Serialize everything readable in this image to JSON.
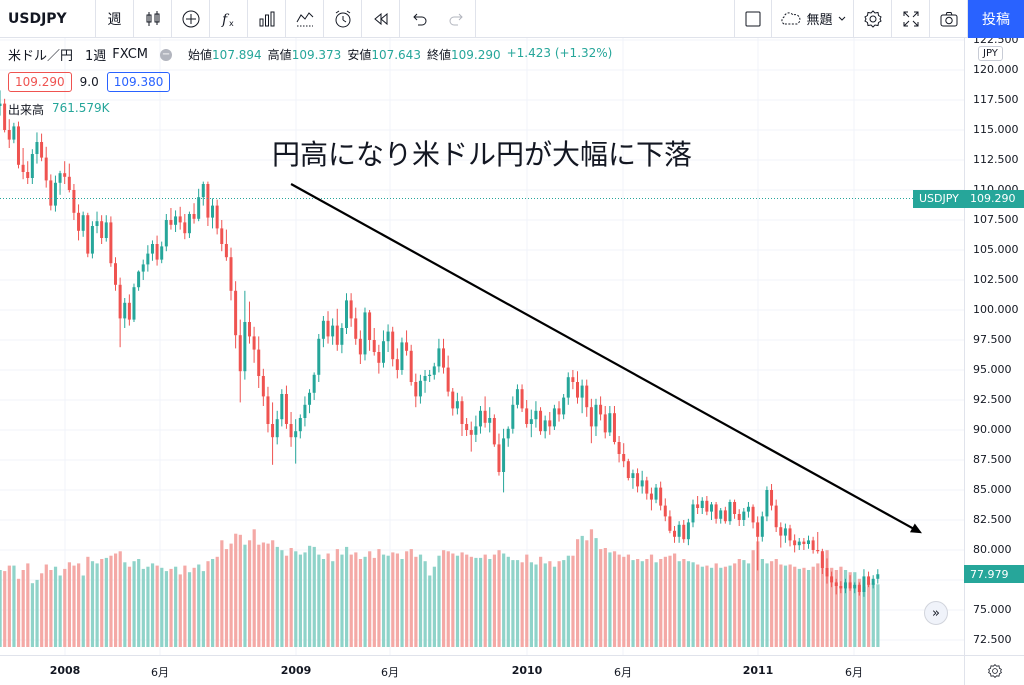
{
  "toolbar": {
    "symbol": "USDJPY",
    "interval": "週",
    "layout_name": "無題",
    "post_label": "投稿",
    "icons": [
      "candles-icon",
      "add-compare-icon",
      "indicators-icon",
      "financials-icon",
      "templates-icon",
      "alert-icon",
      "replay-icon",
      "undo-icon",
      "redo-icon",
      "layout-icon",
      "cloud-icon",
      "chevron-down-icon",
      "settings-icon",
      "fullscreen-icon",
      "camera-icon"
    ]
  },
  "legend": {
    "name": "米ドル／円",
    "interval": "1週",
    "exchange": "FXCM",
    "ohlc": [
      {
        "k": "始値",
        "v": "107.894"
      },
      {
        "k": "高値",
        "v": "109.373"
      },
      {
        "k": "安値",
        "v": "107.643"
      },
      {
        "k": "終値",
        "v": "109.290"
      },
      {
        "k": "",
        "v": "+1.423 (+1.32%)"
      }
    ],
    "bid": "109.290",
    "spread": "9.0",
    "ask": "109.380",
    "volume_label": "出来高",
    "volume_value": "761.579K"
  },
  "annotation_text": "円高になり米ドル円が大幅に下落",
  "price_axis": {
    "currency": "JPY",
    "ticks": [
      "122.500",
      "120.000",
      "117.500",
      "115.000",
      "112.500",
      "110.000",
      "107.500",
      "105.000",
      "102.500",
      "100.000",
      "97.500",
      "95.000",
      "92.500",
      "90.000",
      "87.500",
      "85.000",
      "82.500",
      "80.000",
      "77.500",
      "75.000",
      "72.500"
    ],
    "symbol_tag": "USDJPY",
    "current_price": "109.290",
    "volume_tag": "77.979"
  },
  "time_axis": {
    "labels": [
      {
        "text": "2008",
        "year": true
      },
      {
        "text": "6月",
        "year": false
      },
      {
        "text": "2009",
        "year": true
      },
      {
        "text": "6月",
        "year": false
      },
      {
        "text": "2010",
        "year": true
      },
      {
        "text": "6月",
        "year": false
      },
      {
        "text": "2011",
        "year": true
      },
      {
        "text": "6月",
        "year": false
      }
    ]
  },
  "colors": {
    "up": "#26a69a",
    "down": "#ef5350",
    "vol_up": "#8fd3c9",
    "vol_down": "#f4a9a6",
    "accent": "#2962ff"
  },
  "chart_data": {
    "type": "candlestick",
    "symbol": "USDJPY",
    "ylim": [
      72.5,
      122.5
    ],
    "x_range": [
      "2007-11",
      "2011-09"
    ],
    "trendline": {
      "from": [
        63,
        110.5
      ],
      "to": [
        232,
        81.4
      ]
    },
    "candles": [
      [
        117.0,
        118.3,
        116.2,
        117.2,
        0.7
      ],
      [
        117.2,
        117.6,
        114.8,
        115.0,
        0.69
      ],
      [
        115.0,
        115.9,
        113.5,
        114.2,
        0.74
      ],
      [
        114.2,
        115.6,
        113.9,
        115.3,
        0.74
      ],
      [
        115.3,
        115.7,
        111.8,
        112.1,
        0.62
      ],
      [
        112.1,
        113.5,
        110.9,
        111.5,
        0.7
      ],
      [
        111.5,
        112.4,
        110.5,
        111.0,
        0.76
      ],
      [
        111.0,
        113.4,
        110.5,
        113.0,
        0.58
      ],
      [
        113.0,
        114.8,
        112.2,
        114.0,
        0.61
      ],
      [
        114.0,
        114.7,
        112.4,
        112.7,
        0.67
      ],
      [
        112.7,
        113.6,
        110.2,
        110.8,
        0.75
      ],
      [
        110.8,
        111.3,
        108.3,
        108.7,
        0.7
      ],
      [
        108.7,
        111.2,
        108.2,
        110.6,
        0.73
      ],
      [
        110.6,
        111.6,
        109.6,
        111.4,
        0.65
      ],
      [
        111.4,
        112.4,
        110.5,
        111.1,
        0.71
      ],
      [
        111.1,
        112.2,
        109.8,
        110.0,
        0.77
      ],
      [
        110.0,
        110.5,
        107.5,
        108.1,
        0.74
      ],
      [
        108.1,
        108.8,
        105.8,
        106.6,
        0.76
      ],
      [
        106.6,
        108.2,
        106.1,
        107.9,
        0.65
      ],
      [
        107.9,
        108.1,
        104.4,
        104.7,
        0.82
      ],
      [
        104.7,
        107.4,
        104.3,
        107.0,
        0.78
      ],
      [
        107.0,
        108.2,
        106.4,
        107.4,
        0.76
      ],
      [
        107.4,
        107.9,
        105.5,
        106.0,
        0.8
      ],
      [
        106.0,
        107.9,
        105.7,
        107.3,
        0.81
      ],
      [
        107.3,
        107.8,
        103.6,
        103.9,
        0.83
      ],
      [
        103.9,
        104.4,
        101.6,
        102.1,
        0.85
      ],
      [
        102.1,
        102.7,
        96.9,
        99.3,
        0.87
      ],
      [
        99.3,
        101.0,
        98.5,
        100.6,
        0.77
      ],
      [
        100.6,
        101.3,
        98.7,
        99.2,
        0.73
      ],
      [
        99.2,
        102.2,
        99.0,
        101.9,
        0.78
      ],
      [
        101.9,
        103.3,
        101.6,
        103.2,
        0.8
      ],
      [
        103.2,
        104.2,
        102.5,
        103.8,
        0.71
      ],
      [
        103.8,
        105.4,
        103.2,
        104.7,
        0.73
      ],
      [
        104.7,
        105.8,
        104.1,
        105.5,
        0.76
      ],
      [
        105.5,
        106.2,
        103.7,
        104.2,
        0.74
      ],
      [
        104.2,
        105.7,
        103.9,
        105.3,
        0.72
      ],
      [
        105.3,
        108.0,
        104.9,
        107.5,
        0.69
      ],
      [
        107.5,
        108.5,
        106.7,
        107.1,
        0.71
      ],
      [
        107.1,
        108.3,
        106.5,
        107.8,
        0.73
      ],
      [
        107.8,
        108.6,
        106.7,
        107.3,
        0.66
      ],
      [
        107.3,
        108.0,
        105.9,
        106.4,
        0.74
      ],
      [
        106.4,
        108.2,
        106.0,
        108.0,
        0.68
      ],
      [
        108.0,
        108.9,
        107.2,
        107.6,
        0.72
      ],
      [
        107.6,
        110.1,
        107.4,
        109.4,
        0.75
      ],
      [
        109.4,
        110.7,
        108.7,
        110.5,
        0.69
      ],
      [
        110.5,
        110.7,
        107.0,
        107.7,
        0.78
      ],
      [
        107.7,
        109.3,
        106.8,
        108.7,
        0.8
      ],
      [
        108.7,
        109.2,
        106.3,
        106.8,
        0.82
      ],
      [
        106.8,
        107.5,
        104.9,
        105.5,
        0.97
      ],
      [
        105.5,
        106.7,
        104.1,
        104.4,
        0.89
      ],
      [
        104.4,
        105.2,
        100.8,
        101.6,
        0.94
      ],
      [
        101.6,
        102.4,
        96.8,
        97.9,
        1.03
      ],
      [
        97.9,
        99.2,
        92.3,
        94.9,
        1.02
      ],
      [
        94.9,
        101.6,
        94.2,
        99.0,
        0.93
      ],
      [
        99.0,
        100.7,
        97.2,
        97.8,
        0.97
      ],
      [
        97.8,
        98.6,
        95.6,
        96.7,
        1.07
      ],
      [
        96.7,
        97.8,
        93.5,
        94.5,
        0.93
      ],
      [
        94.5,
        95.1,
        92.0,
        92.8,
        0.95
      ],
      [
        92.8,
        93.6,
        89.8,
        90.5,
        0.94
      ],
      [
        90.5,
        92.3,
        87.1,
        89.4,
        0.97
      ],
      [
        89.4,
        91.6,
        88.8,
        90.9,
        0.91
      ],
      [
        90.9,
        93.4,
        90.3,
        93.0,
        0.88
      ],
      [
        93.0,
        93.7,
        90.1,
        90.5,
        0.83
      ],
      [
        90.5,
        91.5,
        88.6,
        89.4,
        0.9
      ],
      [
        89.4,
        90.9,
        87.2,
        89.9,
        0.87
      ],
      [
        89.9,
        91.3,
        89.3,
        91.0,
        0.84
      ],
      [
        91.0,
        92.8,
        90.3,
        92.1,
        0.86
      ],
      [
        92.1,
        93.4,
        91.4,
        93.1,
        0.92
      ],
      [
        93.1,
        94.8,
        92.5,
        94.6,
        0.91
      ],
      [
        94.6,
        98.0,
        94.0,
        97.6,
        0.84
      ],
      [
        97.6,
        99.5,
        96.9,
        99.1,
        0.8
      ],
      [
        99.1,
        99.9,
        97.2,
        97.8,
        0.85
      ],
      [
        97.8,
        99.3,
        97.1,
        98.7,
        0.78
      ],
      [
        98.7,
        100.1,
        96.6,
        97.1,
        0.89
      ],
      [
        97.1,
        98.9,
        96.4,
        98.5,
        0.84
      ],
      [
        98.5,
        101.4,
        98.0,
        100.8,
        0.91
      ],
      [
        100.8,
        101.4,
        98.6,
        99.3,
        0.84
      ],
      [
        99.3,
        100.2,
        97.1,
        97.6,
        0.86
      ],
      [
        97.6,
        98.3,
        95.5,
        96.3,
        0.8
      ],
      [
        96.3,
        100.2,
        95.8,
        99.8,
        0.82
      ],
      [
        99.8,
        100.0,
        96.6,
        97.5,
        0.87
      ],
      [
        97.5,
        98.5,
        96.2,
        96.5,
        0.81
      ],
      [
        96.5,
        97.1,
        94.7,
        95.6,
        0.89
      ],
      [
        95.6,
        98.3,
        95.2,
        97.4,
        0.84
      ],
      [
        97.4,
        98.8,
        96.5,
        98.2,
        0.83
      ],
      [
        98.2,
        98.6,
        95.3,
        95.9,
        0.86
      ],
      [
        95.9,
        96.8,
        94.3,
        95.0,
        0.85
      ],
      [
        95.0,
        97.7,
        94.6,
        97.3,
        0.8
      ],
      [
        97.3,
        98.3,
        96.2,
        96.6,
        0.87
      ],
      [
        96.6,
        97.1,
        93.7,
        94.0,
        0.89
      ],
      [
        94.0,
        94.7,
        91.9,
        92.8,
        0.82
      ],
      [
        92.8,
        94.6,
        92.2,
        94.1,
        0.84
      ],
      [
        94.1,
        95.0,
        93.1,
        94.5,
        0.78
      ],
      [
        94.5,
        95.0,
        94.0,
        94.6,
        0.65
      ],
      [
        94.6,
        95.6,
        94.2,
        95.3,
        0.73
      ],
      [
        95.3,
        97.6,
        94.8,
        96.8,
        0.83
      ],
      [
        96.8,
        97.6,
        94.7,
        95.2,
        0.88
      ],
      [
        95.2,
        96.2,
        92.8,
        93.2,
        0.87
      ],
      [
        93.2,
        93.5,
        91.2,
        91.8,
        0.85
      ],
      [
        91.8,
        93.1,
        91.3,
        92.4,
        0.83
      ],
      [
        92.4,
        92.8,
        89.5,
        90.5,
        0.86
      ],
      [
        90.5,
        91.0,
        89.5,
        90.0,
        0.84
      ],
      [
        90.0,
        90.7,
        88.2,
        89.6,
        0.82
      ],
      [
        89.6,
        91.2,
        89.0,
        90.3,
        0.81
      ],
      [
        90.3,
        92.0,
        89.7,
        91.6,
        0.81
      ],
      [
        91.6,
        92.8,
        90.2,
        90.6,
        0.84
      ],
      [
        90.6,
        91.9,
        89.8,
        91.0,
        0.8
      ],
      [
        91.0,
        91.3,
        88.6,
        88.8,
        0.84
      ],
      [
        88.8,
        89.7,
        86.2,
        86.5,
        0.88
      ],
      [
        86.5,
        90.1,
        84.8,
        89.3,
        0.85
      ],
      [
        89.3,
        90.3,
        88.6,
        90.1,
        0.82
      ],
      [
        90.1,
        92.8,
        89.7,
        92.1,
        0.79
      ],
      [
        92.1,
        93.8,
        91.8,
        93.4,
        0.79
      ],
      [
        93.4,
        93.8,
        91.5,
        91.8,
        0.77
      ],
      [
        91.8,
        92.5,
        90.2,
        90.5,
        0.84
      ],
      [
        90.5,
        91.7,
        89.4,
        90.9,
        0.77
      ],
      [
        90.9,
        92.4,
        90.2,
        91.6,
        0.75
      ],
      [
        91.6,
        91.9,
        89.6,
        89.9,
        0.82
      ],
      [
        89.9,
        91.2,
        89.3,
        90.8,
        0.76
      ],
      [
        90.8,
        91.5,
        89.6,
        90.3,
        0.78
      ],
      [
        90.3,
        92.1,
        90.0,
        91.8,
        0.73
      ],
      [
        91.8,
        92.4,
        90.7,
        91.3,
        0.78
      ],
      [
        91.3,
        93.0,
        90.9,
        92.7,
        0.79
      ],
      [
        92.7,
        94.8,
        92.1,
        94.4,
        0.83
      ],
      [
        94.4,
        95.0,
        93.4,
        94.0,
        0.83
      ],
      [
        94.0,
        94.9,
        92.2,
        92.7,
        0.98
      ],
      [
        92.7,
        94.2,
        91.4,
        93.7,
        1.01
      ],
      [
        93.7,
        94.2,
        91.1,
        91.9,
        0.97
      ],
      [
        91.9,
        92.6,
        88.9,
        90.3,
        1.07
      ],
      [
        90.3,
        92.6,
        89.5,
        92.1,
        0.99
      ],
      [
        92.1,
        92.8,
        90.8,
        91.3,
        0.89
      ],
      [
        91.3,
        92.0,
        89.3,
        89.8,
        0.9
      ],
      [
        89.8,
        92.0,
        89.5,
        91.4,
        0.86
      ],
      [
        91.4,
        92.0,
        88.8,
        89.0,
        0.87
      ],
      [
        89.0,
        89.5,
        87.3,
        88.0,
        0.84
      ],
      [
        88.0,
        88.9,
        86.9,
        87.4,
        0.82
      ],
      [
        87.4,
        87.6,
        85.8,
        86.0,
        0.84
      ],
      [
        86.0,
        86.7,
        85.1,
        86.4,
        0.79
      ],
      [
        86.4,
        86.8,
        84.8,
        85.3,
        0.8
      ],
      [
        85.3,
        86.6,
        84.7,
        85.8,
        0.78
      ],
      [
        85.8,
        86.1,
        84.2,
        84.7,
        0.8
      ],
      [
        84.7,
        85.2,
        83.3,
        84.2,
        0.84
      ],
      [
        84.2,
        85.5,
        83.9,
        85.2,
        0.77
      ],
      [
        85.2,
        85.7,
        83.3,
        83.7,
        0.8
      ],
      [
        83.7,
        84.3,
        82.4,
        82.8,
        0.82
      ],
      [
        82.8,
        83.3,
        81.4,
        81.6,
        0.83
      ],
      [
        81.6,
        82.0,
        80.6,
        81.1,
        0.85
      ],
      [
        81.1,
        82.4,
        80.6,
        82.1,
        0.78
      ],
      [
        82.1,
        82.5,
        80.6,
        80.9,
        0.8
      ],
      [
        80.9,
        82.6,
        80.4,
        82.3,
        0.78
      ],
      [
        82.3,
        84.2,
        81.9,
        83.8,
        0.77
      ],
      [
        83.8,
        84.5,
        83.0,
        83.5,
        0.75
      ],
      [
        83.5,
        84.4,
        83.0,
        84.1,
        0.73
      ],
      [
        84.1,
        84.5,
        82.9,
        83.2,
        0.74
      ],
      [
        83.2,
        84.0,
        82.5,
        83.8,
        0.72
      ],
      [
        83.8,
        84.0,
        82.2,
        82.6,
        0.76
      ],
      [
        82.6,
        83.5,
        82.2,
        83.3,
        0.72
      ],
      [
        83.3,
        83.6,
        82.2,
        82.4,
        0.73
      ],
      [
        82.4,
        84.2,
        82.1,
        84.0,
        0.74
      ],
      [
        84.0,
        84.2,
        82.6,
        83.0,
        0.76
      ],
      [
        83.0,
        83.4,
        82.0,
        82.5,
        0.8
      ],
      [
        82.5,
        83.5,
        82.0,
        83.2,
        0.79
      ],
      [
        83.2,
        84.0,
        82.7,
        83.6,
        0.76
      ],
      [
        83.6,
        83.8,
        81.8,
        82.3,
        0.88
      ],
      [
        82.3,
        82.8,
        78.3,
        81.1,
        0.96
      ],
      [
        81.1,
        83.2,
        80.7,
        82.8,
        0.8
      ],
      [
        82.8,
        85.3,
        82.4,
        85.0,
        0.76
      ],
      [
        85.0,
        85.5,
        83.3,
        83.7,
        0.78
      ],
      [
        83.7,
        84.2,
        81.5,
        81.9,
        0.8
      ],
      [
        81.9,
        82.3,
        80.2,
        81.2,
        0.75
      ],
      [
        81.2,
        82.2,
        80.6,
        81.8,
        0.74
      ],
      [
        81.8,
        82.1,
        80.3,
        80.8,
        0.75
      ],
      [
        80.8,
        81.3,
        79.8,
        80.4,
        0.73
      ],
      [
        80.4,
        81.0,
        80.0,
        80.7,
        0.71
      ],
      [
        80.7,
        81.0,
        80.0,
        80.5,
        0.72
      ],
      [
        80.5,
        81.2,
        80.1,
        80.8,
        0.7
      ],
      [
        80.8,
        81.1,
        79.7,
        80.0,
        0.73
      ],
      [
        80.0,
        81.5,
        79.7,
        79.9,
        0.76
      ],
      [
        79.9,
        80.1,
        78.0,
        78.5,
        0.84
      ],
      [
        78.5,
        79.3,
        77.2,
        77.8,
        0.88
      ],
      [
        77.8,
        78.2,
        76.9,
        77.3,
        0.72
      ],
      [
        77.3,
        77.6,
        76.3,
        77.0,
        0.7
      ],
      [
        77.0,
        77.4,
        76.4,
        76.8,
        0.73
      ],
      [
        76.8,
        77.6,
        76.4,
        77.3,
        0.7
      ],
      [
        77.3,
        77.9,
        76.6,
        76.8,
        0.68
      ],
      [
        76.8,
        77.3,
        76.4,
        77.1,
        0.68
      ],
      [
        77.1,
        77.3,
        76.2,
        76.5,
        0.62
      ],
      [
        76.5,
        78.4,
        76.1,
        77.8,
        0.55
      ],
      [
        77.8,
        78.2,
        76.9,
        77.1,
        0.58
      ],
      [
        77.1,
        77.9,
        76.8,
        77.6,
        0.58
      ],
      [
        77.6,
        78.4,
        77.2,
        77.98,
        0.57
      ]
    ]
  }
}
